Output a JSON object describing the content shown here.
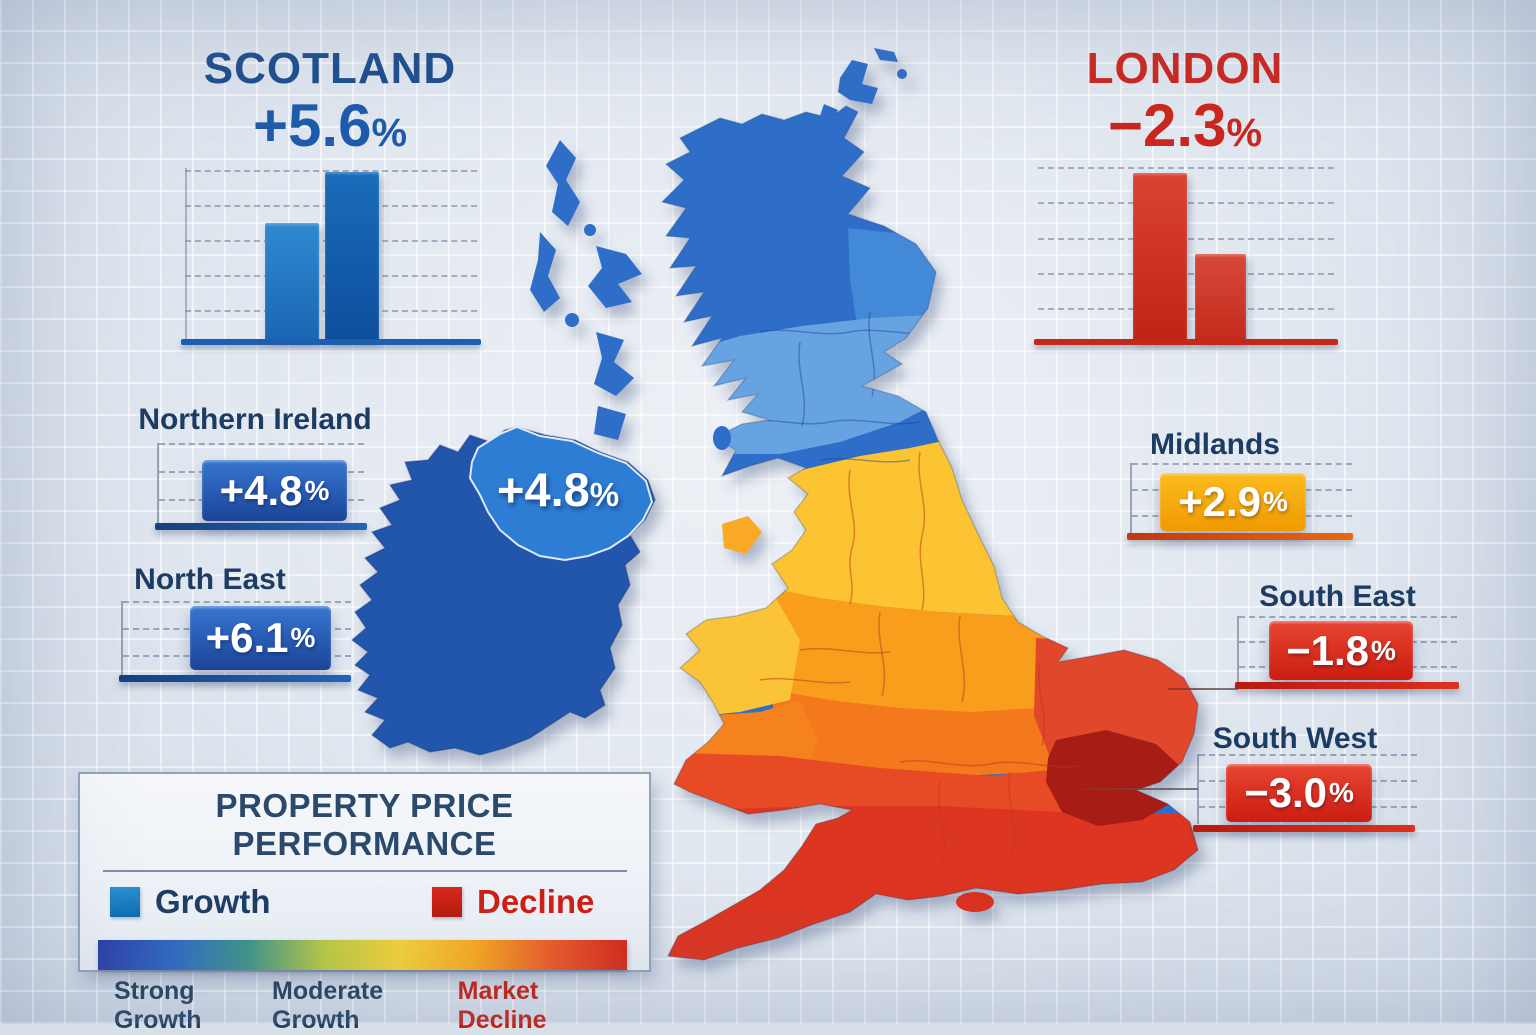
{
  "map": {
    "ni_overlay": {
      "value": "+4.8",
      "suffix": "%"
    }
  },
  "featured": {
    "scotland": {
      "title": "SCOTLAND",
      "value": "+5.6",
      "suffix": "%",
      "accent": "#1d4e8c",
      "chart": {
        "bars_rel_height_pct": [
          66,
          95
        ]
      }
    },
    "london": {
      "title": "LONDON",
      "value": "−2.3",
      "suffix": "%",
      "accent": "#cb271e",
      "chart": {
        "bars_rel_height_pct": [
          93,
          48
        ]
      }
    }
  },
  "callouts": [
    {
      "name": "Northern Ireland",
      "value": "+4.8",
      "suffix": "%",
      "trend": "growth"
    },
    {
      "name": "North East",
      "value": "+6.1",
      "suffix": "%",
      "trend": "growth"
    },
    {
      "name": "Midlands",
      "value": "+2.9",
      "suffix": "%",
      "trend": "moderate"
    },
    {
      "name": "South East",
      "value": "−1.8",
      "suffix": "%",
      "trend": "decline"
    },
    {
      "name": "South West",
      "value": "−3.0",
      "suffix": "%",
      "trend": "decline"
    }
  ],
  "legend": {
    "title": "PROPERTY PRICE PERFORMANCE",
    "items": [
      {
        "label": "Growth",
        "color": "linear-gradient(180deg,#2b8fd0,#0f6cb0)"
      },
      {
        "label": "Decline",
        "color": "linear-gradient(180deg,#d92a1c,#b51a10)"
      }
    ],
    "scale_labels": [
      {
        "text": "Strong Growth",
        "color": "#24415f"
      },
      {
        "text": "Moderate Growth",
        "color": "#24415f"
      },
      {
        "text": "Market Decline",
        "color": "#c32013"
      }
    ],
    "gradient": [
      "#2c3ea6",
      "#2f6ac2",
      "#3f9588",
      "#b9c944",
      "#f3d138",
      "#f6a720",
      "#ea5a28",
      "#d32a1c"
    ]
  },
  "chart_data": [
    {
      "type": "heatmap",
      "subtype": "choropleth-map-uk",
      "title": "Property Price Performance",
      "regions": [
        {
          "name": "Scotland",
          "value_pct": 5.6,
          "status": "growth"
        },
        {
          "name": "North East",
          "value_pct": 6.1,
          "status": "growth"
        },
        {
          "name": "Northern Ireland",
          "value_pct": 4.8,
          "status": "growth"
        },
        {
          "name": "Midlands",
          "value_pct": 2.9,
          "status": "moderate-growth"
        },
        {
          "name": "South East",
          "value_pct": -1.8,
          "status": "decline"
        },
        {
          "name": "London",
          "value_pct": -2.3,
          "status": "decline"
        },
        {
          "name": "South West",
          "value_pct": -3.0,
          "status": "decline"
        }
      ],
      "color_scale": {
        "labels": [
          "Strong Growth",
          "Moderate Growth",
          "Market Decline"
        ],
        "mapping": "blue = growth (north/Scotland/NI), yellow-orange = moderate (midlands/Wales), red = decline (south/London)"
      },
      "legend_position": "bottom-left"
    },
    {
      "type": "bar",
      "title": "Scotland +5.6%",
      "categories": [
        "bar-1",
        "bar-2"
      ],
      "values_rel_pct": [
        66,
        95
      ],
      "color": "blue",
      "grid": "dashed horizontal"
    },
    {
      "type": "bar",
      "title": "London −2.3%",
      "categories": [
        "bar-1",
        "bar-2"
      ],
      "values_rel_pct": [
        93,
        48
      ],
      "color": "red",
      "grid": "dashed horizontal"
    }
  ]
}
